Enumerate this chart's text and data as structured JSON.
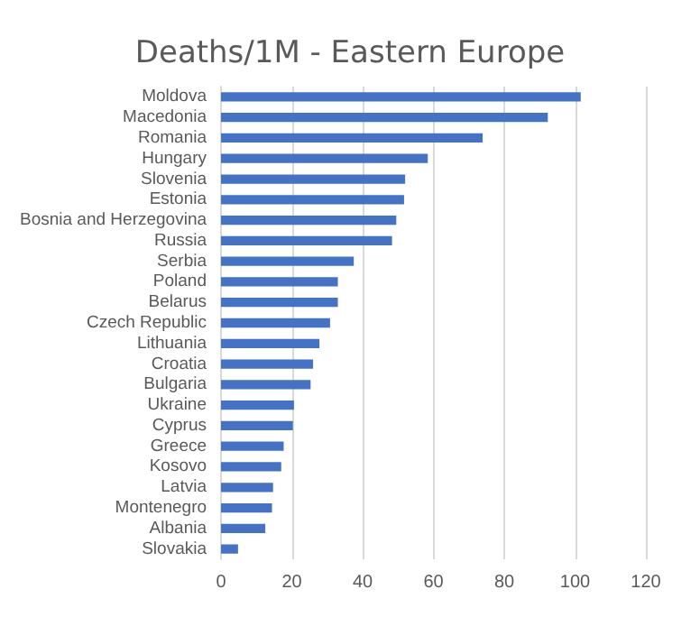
{
  "chart_data": {
    "type": "bar",
    "orientation": "horizontal",
    "title": "Deaths/1M - Eastern Europe",
    "categories": [
      "Moldova",
      "Macedonia",
      "Romania",
      "Hungary",
      "Slovenia",
      "Estonia",
      "Bosnia and Herzegovina",
      "Russia",
      "Serbia",
      "Poland",
      "Belarus",
      "Czech Republic",
      "Lithuania",
      "Croatia",
      "Bulgaria",
      "Ukraine",
      "Cyprus",
      "Greece",
      "Kosovo",
      "Latvia",
      "Montenegro",
      "Albania",
      "Slovakia"
    ],
    "values": [
      101.6,
      92.3,
      73.9,
      58.4,
      52,
      51.7,
      49.5,
      48.3,
      37.5,
      33,
      33,
      30.8,
      27.8,
      26,
      25.3,
      20.6,
      20.3,
      17.7,
      17,
      14.7,
      14.4,
      12.5,
      4.8
    ],
    "color": "#4472c4",
    "xlim": [
      0,
      120
    ],
    "xticks": [
      0,
      20,
      40,
      60,
      80,
      100,
      120
    ],
    "grid": "x"
  }
}
